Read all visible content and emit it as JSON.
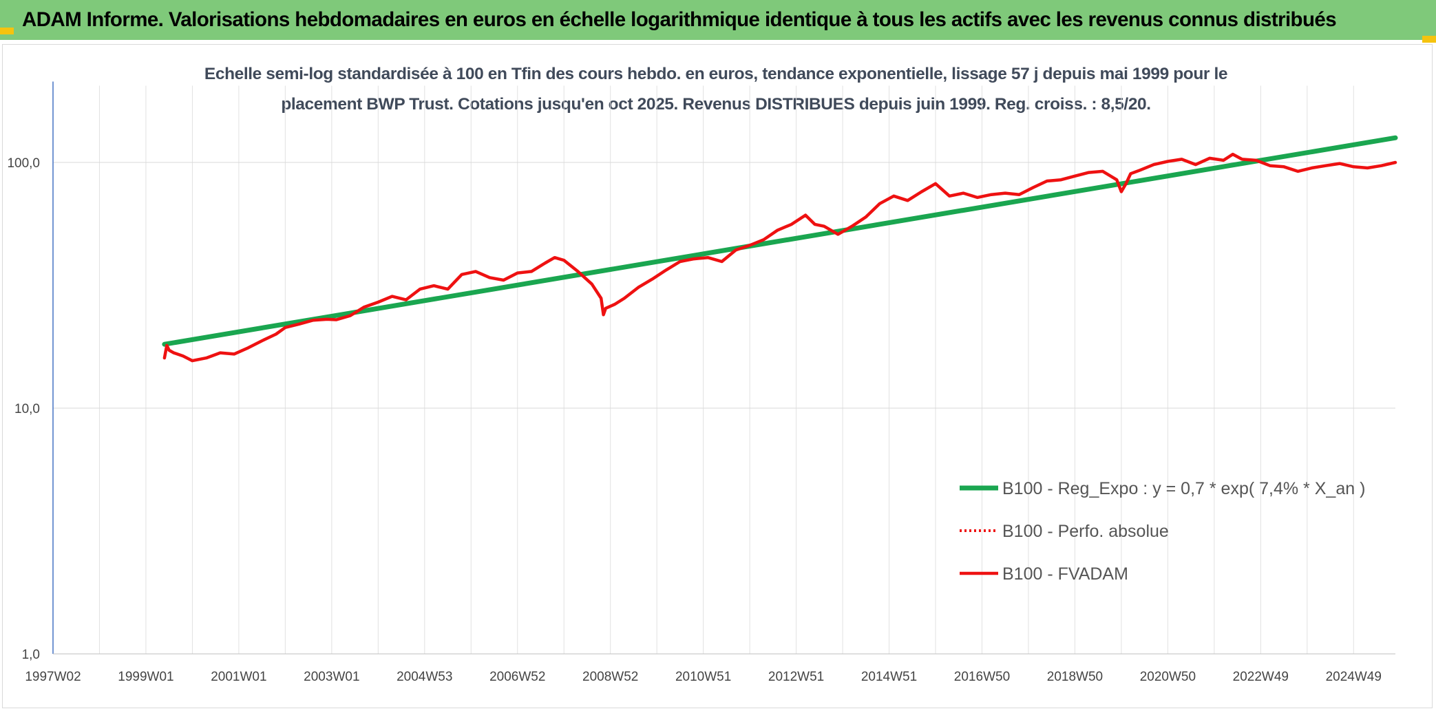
{
  "header": {
    "title": "ADAM Informe. Valorisations hebdomadaires en euros en échelle logarithmique identique à tous les actifs avec les revenus connus distribués"
  },
  "colors": {
    "banner": "#7fc97a",
    "regression": "#1aa650",
    "perf": "#ee1111",
    "corner": "#f5c30f"
  },
  "chart_data": {
    "type": "line",
    "subtitle_lines": [
      "Echelle semi-log standardisée à 100 en Tfin des cours hebdo. en euros, tendance exponentielle, lissage 57 j depuis mai 1999 pour le",
      "placement BWP Trust. Cotations jusqu'en oct 2025. Revenus DISTRIBUES depuis juin 1999. Reg. croiss. : 8,5/20."
    ],
    "y_scale": "log",
    "ylim": [
      1,
      200
    ],
    "y_ticks": [
      {
        "value": 1,
        "label": "1,0"
      },
      {
        "value": 10,
        "label": "10,0"
      },
      {
        "value": 100,
        "label": "100,0"
      }
    ],
    "xlim": [
      1997.0,
      2025.9
    ],
    "x_ticks": [
      {
        "x": 1997.0,
        "label": "1997W02"
      },
      {
        "x": 1999.0,
        "label": "1999W01"
      },
      {
        "x": 2001.0,
        "label": "2001W01"
      },
      {
        "x": 2003.0,
        "label": "2003W01"
      },
      {
        "x": 2005.0,
        "label": "2004W53"
      },
      {
        "x": 2007.0,
        "label": "2006W52"
      },
      {
        "x": 2009.0,
        "label": "2008W52"
      },
      {
        "x": 2011.0,
        "label": "2010W51"
      },
      {
        "x": 2013.0,
        "label": "2012W51"
      },
      {
        "x": 2015.0,
        "label": "2014W51"
      },
      {
        "x": 2017.0,
        "label": "2016W50"
      },
      {
        "x": 2019.0,
        "label": "2018W50"
      },
      {
        "x": 2021.0,
        "label": "2020W50"
      },
      {
        "x": 2023.0,
        "label": "2022W49"
      },
      {
        "x": 2025.0,
        "label": "2024W49"
      }
    ],
    "x_gridlines": [
      1997.0,
      1998.0,
      1999.0,
      2000.0,
      2001.0,
      2002.0,
      2003.0,
      2004.0,
      2005.0,
      2006.0,
      2007.0,
      2008.0,
      2009.0,
      2010.0,
      2011.0,
      2012.0,
      2013.0,
      2014.0,
      2015.0,
      2016.0,
      2017.0,
      2018.0,
      2019.0,
      2020.0,
      2021.0,
      2022.0,
      2023.0,
      2024.0,
      2025.0
    ],
    "legend_position": "right",
    "series": [
      {
        "name": "B100 - Reg_Expo : y = 0,7 * exp( 7,4% *  X_an )",
        "style": "thick-solid",
        "color": "#1aa650",
        "x": [
          1999.4,
          2025.9
        ],
        "y": [
          18.2,
          126
        ]
      },
      {
        "name": "B100 - Perfo. absolue",
        "style": "dotted",
        "color": "#ee1111",
        "x": [],
        "y": []
      },
      {
        "name": "B100 - FVADAM",
        "style": "solid",
        "color": "#ee1111",
        "x": [
          1999.4,
          1999.45,
          1999.5,
          1999.6,
          1999.8,
          2000.0,
          2000.3,
          2000.6,
          2000.9,
          2001.2,
          2001.5,
          2001.8,
          2002.0,
          2002.3,
          2002.6,
          2002.9,
          2003.1,
          2003.4,
          2003.7,
          2004.0,
          2004.3,
          2004.6,
          2004.9,
          2005.2,
          2005.5,
          2005.8,
          2006.1,
          2006.4,
          2006.7,
          2007.0,
          2007.3,
          2007.6,
          2007.8,
          2008.0,
          2008.3,
          2008.6,
          2008.8,
          2008.85,
          2008.9,
          2009.1,
          2009.3,
          2009.6,
          2009.9,
          2010.2,
          2010.5,
          2010.8,
          2011.1,
          2011.4,
          2011.7,
          2012.0,
          2012.3,
          2012.6,
          2012.9,
          2013.2,
          2013.4,
          2013.6,
          2013.9,
          2014.2,
          2014.5,
          2014.8,
          2015.1,
          2015.4,
          2015.7,
          2016.0,
          2016.3,
          2016.6,
          2016.9,
          2017.2,
          2017.5,
          2017.8,
          2018.1,
          2018.4,
          2018.7,
          2019.0,
          2019.3,
          2019.6,
          2019.9,
          2020.0,
          2020.1,
          2020.2,
          2020.4,
          2020.7,
          2021.0,
          2021.3,
          2021.6,
          2021.9,
          2022.2,
          2022.4,
          2022.6,
          2022.9,
          2023.2,
          2023.5,
          2023.8,
          2024.1,
          2024.4,
          2024.7,
          2025.0,
          2025.3,
          2025.6,
          2025.9
        ],
        "y": [
          16.0,
          18.0,
          17.2,
          16.8,
          16.3,
          15.6,
          16.0,
          16.8,
          16.6,
          17.6,
          18.8,
          20.0,
          21.3,
          22.0,
          22.8,
          23.0,
          22.9,
          23.8,
          25.8,
          27.0,
          28.5,
          27.6,
          30.5,
          31.5,
          30.5,
          35.0,
          36.0,
          34.0,
          33.2,
          35.5,
          36.0,
          39.0,
          41.0,
          40.0,
          36.0,
          32.0,
          28.0,
          24.0,
          25.5,
          26.5,
          28.0,
          31.0,
          33.5,
          36.5,
          39.5,
          40.5,
          41.0,
          39.5,
          44.0,
          46.0,
          48.5,
          53.0,
          56.0,
          61.0,
          56.0,
          55.0,
          51.0,
          55.0,
          60.0,
          68.0,
          73.0,
          70.0,
          76.0,
          82.0,
          73.0,
          75.0,
          72.0,
          74.0,
          75.0,
          74.0,
          79.0,
          84.0,
          85.0,
          88.0,
          91.0,
          92.0,
          85.0,
          76.0,
          82.0,
          90.0,
          93.0,
          98.0,
          101.0,
          103.0,
          98.0,
          104.0,
          102.0,
          108.0,
          103.0,
          102.0,
          97.0,
          96.0,
          92.0,
          95.0,
          97.0,
          99.0,
          96.0,
          95.0,
          97.0,
          100.0
        ]
      }
    ]
  }
}
